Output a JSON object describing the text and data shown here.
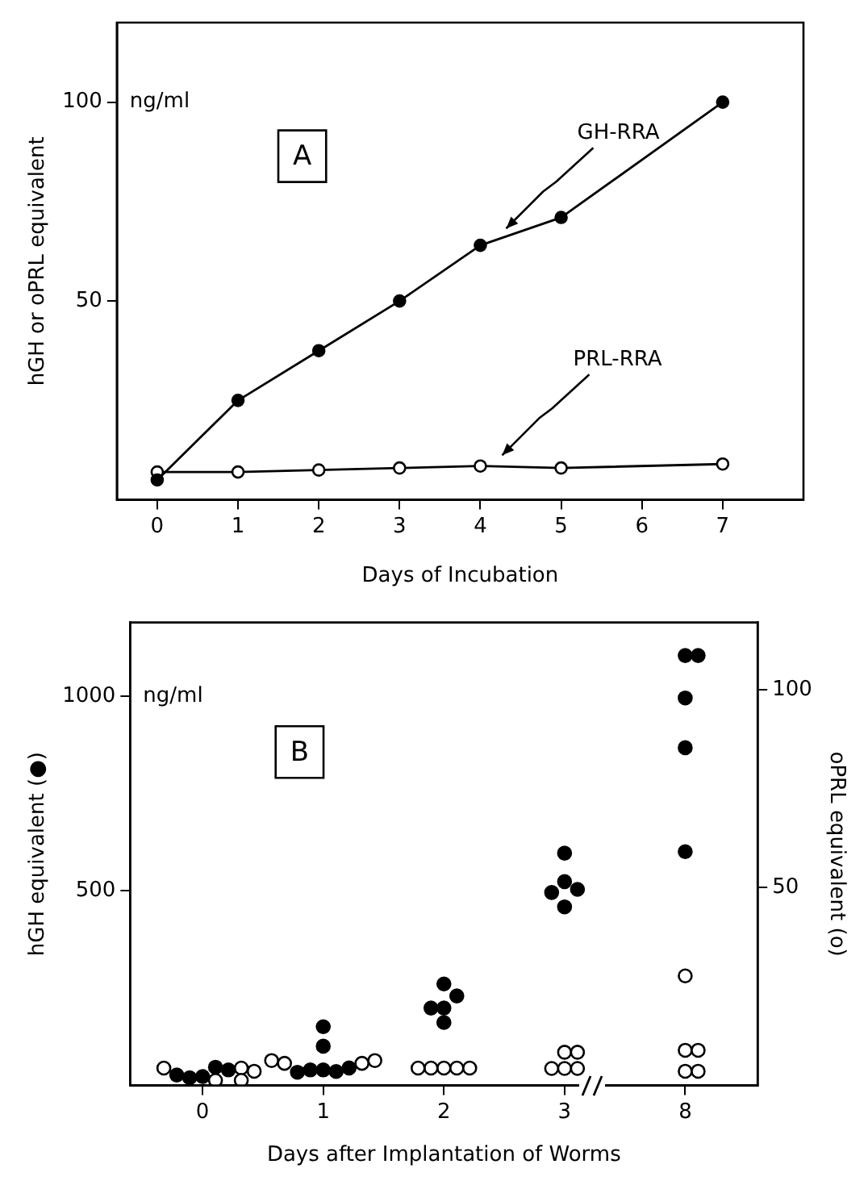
{
  "chart_data": [
    {
      "type": "line",
      "xlabel": "Days of Incubation",
      "ylabel": "hGH or oPRL equivalent",
      "xlim": [
        -0.5,
        8
      ],
      "xticks": [
        0,
        1,
        2,
        3,
        4,
        5,
        6,
        7
      ],
      "ylim": [
        0,
        120
      ],
      "yticks": [
        50,
        100
      ],
      "marker": "circle",
      "series": [
        {
          "color": "#000000",
          "x": [
            0,
            1,
            2,
            3,
            4,
            5,
            7
          ],
          "values": [
            5,
            25,
            37.5,
            50,
            64,
            71,
            100
          ]
        },
        {
          "color": "#ffffff",
          "x": [
            0,
            1,
            2,
            3,
            4,
            5,
            7
          ],
          "values": [
            7,
            7,
            7.5,
            8,
            8.5,
            8,
            9
          ]
        }
      ],
      "annotations": [
        "ng/ml",
        "A",
        {
          "text": "GH-RRA",
          "x": 4.3,
          "y": 67
        },
        {
          "text": "PRL-RRA",
          "x": 4.25,
          "y": 10
        }
      ]
    },
    {
      "type": "scatter",
      "xlabel": "Days after Implantation of Worms",
      "ylabel": "hGH equivalent (●)",
      "y2label": "oPRL equivalent (o)",
      "categories": [
        "0",
        "1",
        "2",
        "3",
        "8"
      ],
      "ylim": [
        0,
        1190
      ],
      "yticks": [
        500,
        1000
      ],
      "y2lim": [
        0,
        117
      ],
      "y2ticks": [
        50,
        100
      ],
      "marker": "circle",
      "series": [
        {
          "color": "#000000",
          "axis": "y",
          "x": [
            "0",
            "0",
            "0",
            "0",
            "0",
            "1",
            "1",
            "1",
            "1",
            "1",
            "1",
            "1",
            "2",
            "2",
            "2",
            "2",
            "2",
            "3",
            "3",
            "3",
            "3",
            "3",
            "8",
            "8",
            "8",
            "8",
            "8"
          ],
          "values": [
            23,
            47,
            20,
            40,
            27,
            151,
            101,
            40,
            36,
            40,
            45,
            34,
            261,
            230,
            199,
            199,
            162,
            597,
            524,
            504,
            496,
            459,
            1105,
            1105,
            996,
            868,
            601
          ]
        },
        {
          "color": "#ffffff",
          "axis": "y2",
          "x": [
            "0",
            "0",
            "0",
            "0",
            "0",
            "1",
            "1",
            "1",
            "1",
            "2",
            "2",
            "2",
            "2",
            "2",
            "3",
            "3",
            "3",
            "3",
            "3",
            "8",
            "8",
            "8",
            "8",
            "8"
          ],
          "values": [
            4.4,
            4.4,
            1.3,
            1.3,
            3.6,
            5.6,
            5.6,
            6.3,
            6.3,
            4.4,
            4.4,
            4.4,
            4.4,
            4.4,
            8.4,
            8.4,
            4.3,
            4.3,
            4.3,
            27.7,
            8.9,
            8.9,
            3.6,
            3.6
          ]
        }
      ],
      "annotations": [
        "ng/ml",
        "B"
      ]
    }
  ]
}
